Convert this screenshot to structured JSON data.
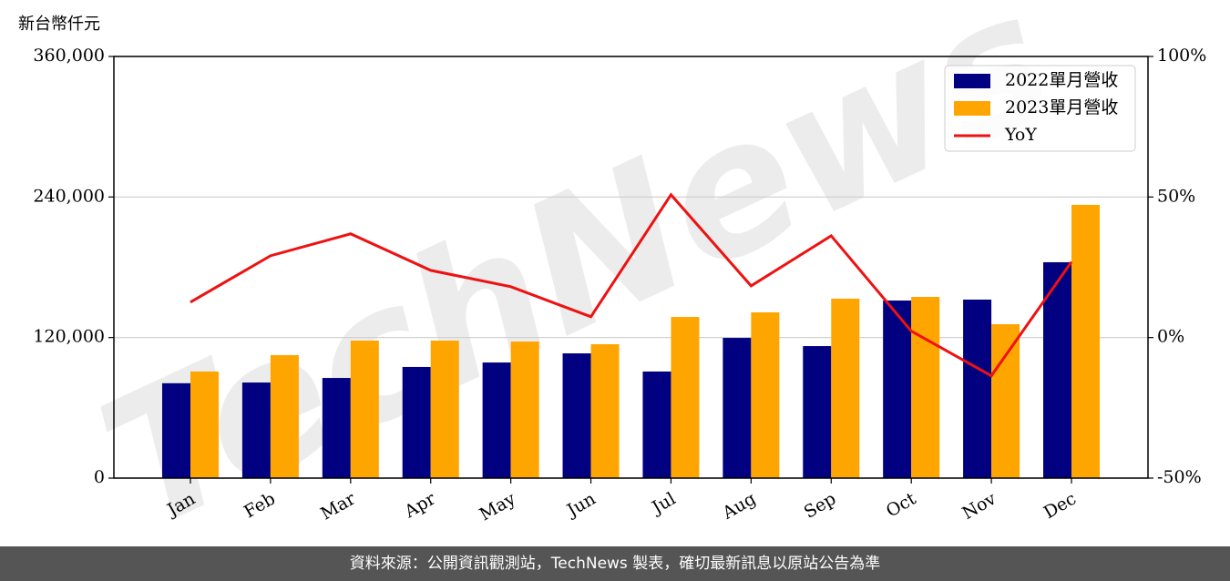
{
  "chart_data": {
    "type": "bar_line",
    "y_label": "新台幣仟元",
    "watermark": "TechNews",
    "categories": [
      "Jan",
      "Feb",
      "Mar",
      "Apr",
      "May",
      "Jun",
      "Jul",
      "Aug",
      "Sep",
      "Oct",
      "Nov",
      "Dec"
    ],
    "series": [
      {
        "name": "2022單月營收",
        "color": "#000080",
        "type": "bar",
        "values": [
          81000,
          81600,
          85500,
          94900,
          98700,
          106500,
          91000,
          119700,
          112700,
          151600,
          152400,
          184300
        ]
      },
      {
        "name": "2023單月營收",
        "color": "#ffa500",
        "type": "bar",
        "values": [
          91000,
          105000,
          117400,
          117400,
          116600,
          114300,
          137600,
          141500,
          153200,
          154700,
          131400,
          233300
        ]
      },
      {
        "name": "YoY",
        "color": "#ee1111",
        "type": "line",
        "axis": "y2",
        "values": [
          12.6,
          29.1,
          36.9,
          23.9,
          18.1,
          7.4,
          50.8,
          18.4,
          36.2,
          2.3,
          -13.6,
          26.9
        ]
      }
    ],
    "ylim": [
      0,
      360000
    ],
    "yticks": [
      0,
      {
        "value": 120000,
        "label": "120,000"
      },
      {
        "value": 240000,
        "label": "240,000"
      },
      {
        "value": 360000,
        "label": "360,000"
      }
    ],
    "y2lim": [
      -50,
      100
    ],
    "y2ticks": [
      {
        "value": -50,
        "label": "-50%"
      },
      {
        "value": 0,
        "label": "0%"
      },
      {
        "value": 50,
        "label": "50%"
      },
      {
        "value": 100,
        "label": "100%"
      }
    ],
    "grid": true,
    "legend": "upper right",
    "footer": "資料來源：公開資訊觀測站，TechNews 製表，確切最新訊息以原站公告為準"
  }
}
